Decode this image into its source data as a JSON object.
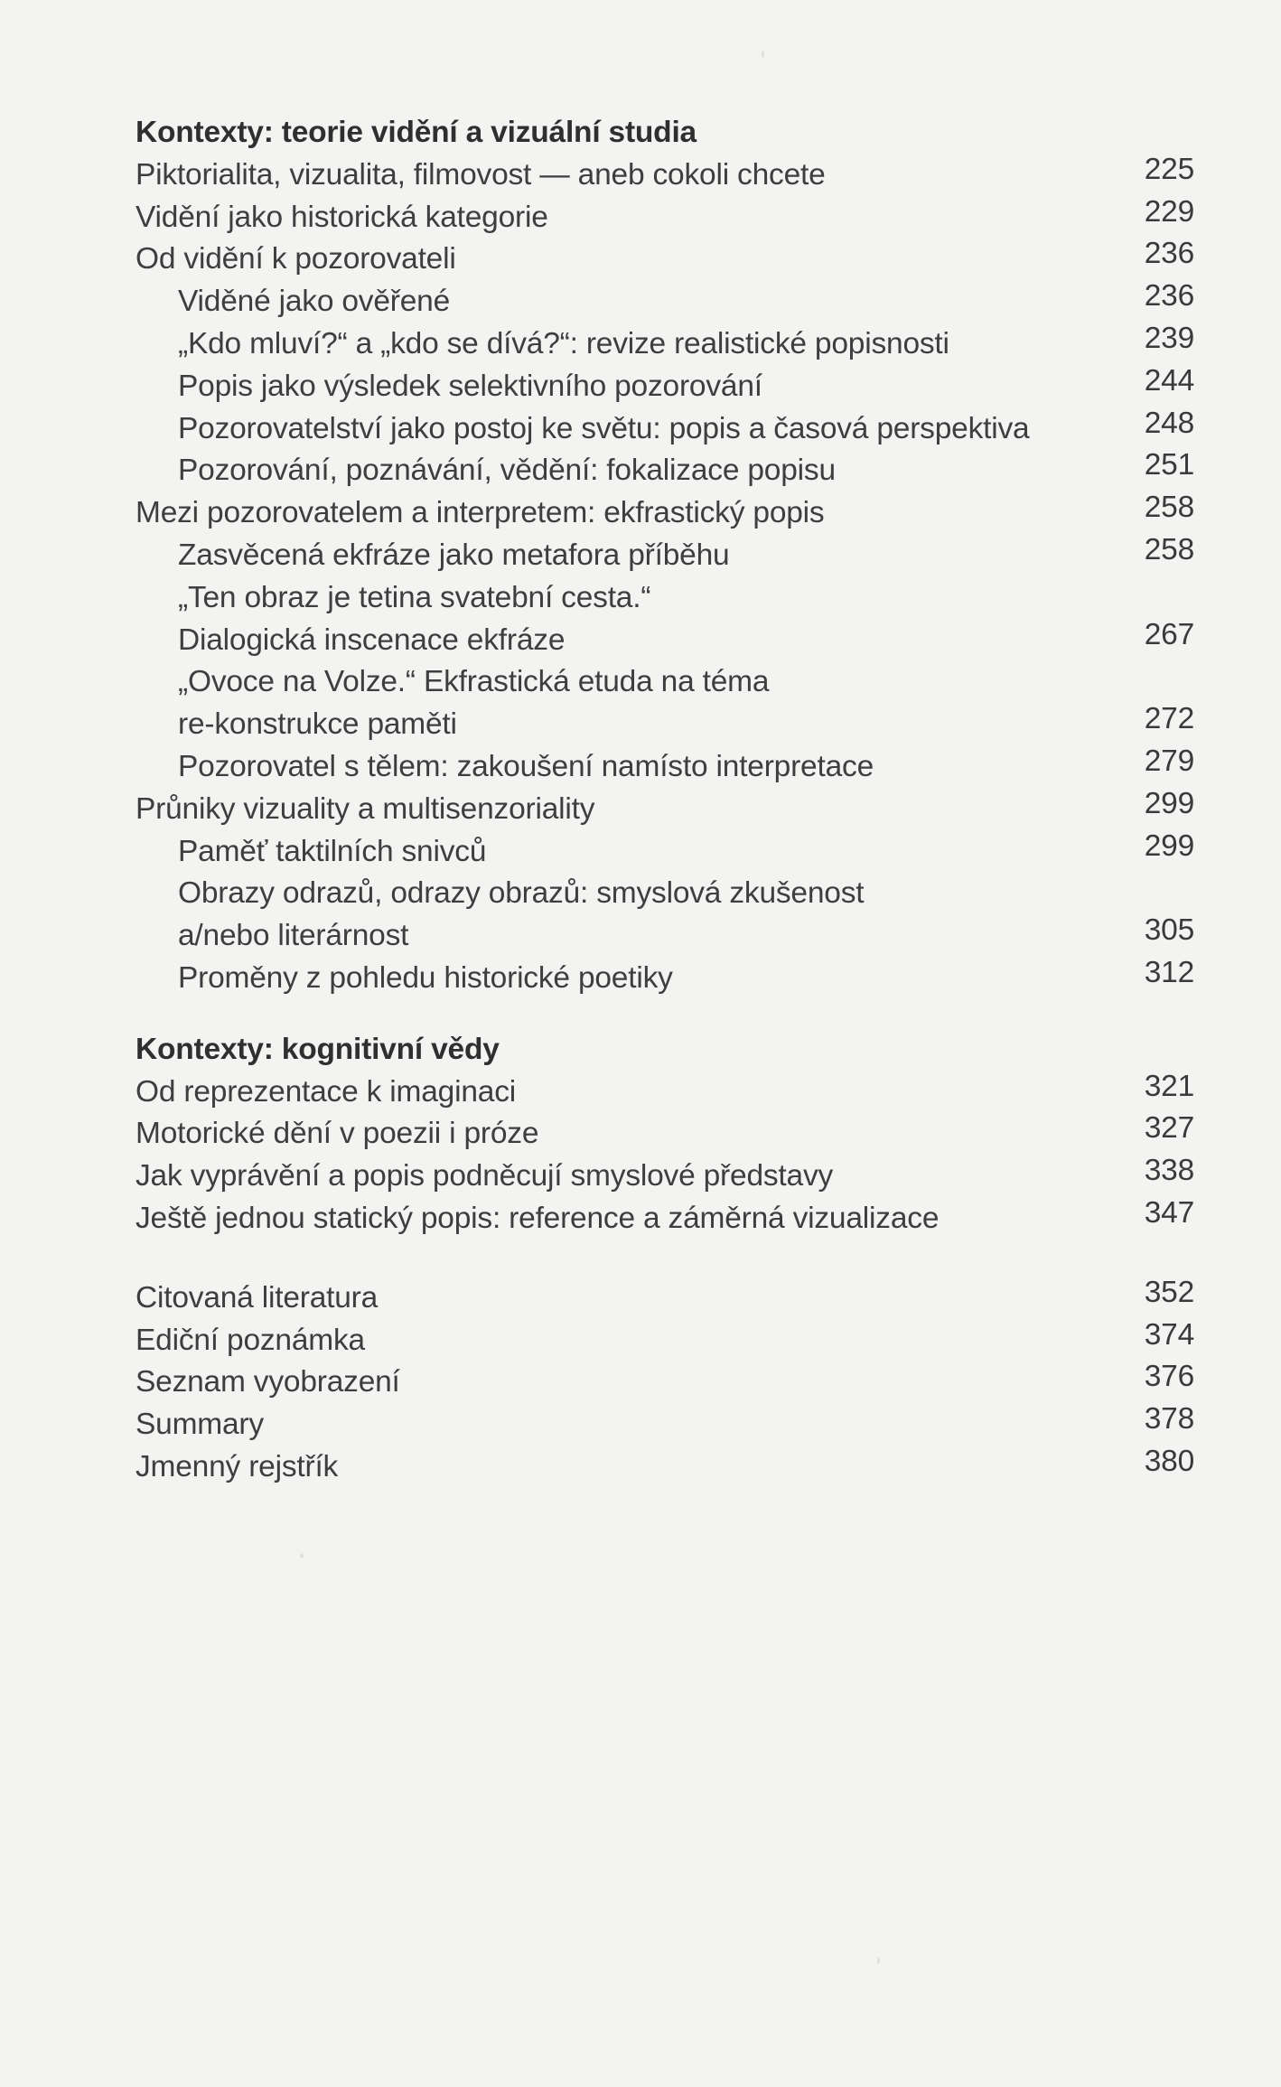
{
  "page": {
    "background": "#f3f3f2",
    "text_color": "#3e3e3e",
    "heading_color": "#2f2f2f"
  },
  "toc": {
    "sections": [
      {
        "heading": "Kontexty: teorie vidění a vizuální studia",
        "entries": [
          {
            "label": "Piktorialita, vizualita, filmovost — aneb cokoli chcete",
            "page": "225"
          },
          {
            "label": "Vidění jako historická kategorie",
            "page": "229"
          },
          {
            "label": "Od vidění k pozorovateli",
            "page": "236"
          },
          {
            "label": "Viděné jako ověřené",
            "page": "236"
          },
          {
            "label": "„Kdo mluví?“ a „kdo se dívá?“: revize realistické popisnosti",
            "page": "239"
          },
          {
            "label": "Popis jako výsledek selektivního pozorování",
            "page": "244"
          },
          {
            "label": "Pozorovatelství jako postoj ke světu: popis a časová perspektiva",
            "page": "248"
          },
          {
            "label": "Pozorování, poznávání, vědění: fokalizace popisu",
            "page": "251"
          },
          {
            "label": "Mezi pozorovatelem a interpretem: ekfrastický popis",
            "page": "258"
          },
          {
            "label": "Zasvěcená ekfráze jako metafora příběhu",
            "page": "258"
          },
          {
            "label": "„Ten obraz je tetina svatební cesta.“",
            "page": ""
          },
          {
            "label": "Dialogická inscenace ekfráze",
            "page": "267"
          },
          {
            "label": "„Ovoce na Volze.“ Ekfrastická etuda na téma",
            "page": ""
          },
          {
            "label": "re-konstrukce paměti",
            "page": "272"
          },
          {
            "label": "Pozorovatel s tělem: zakoušení namísto interpretace",
            "page": "279"
          },
          {
            "label": "Průniky vizuality a multisenzoriality",
            "page": "299"
          },
          {
            "label": "Paměť taktilních snivců",
            "page": "299"
          },
          {
            "label": "Obrazy odrazů, odrazy obrazů: smyslová zkušenost",
            "page": ""
          },
          {
            "label": "a/nebo literárnost",
            "page": "305"
          },
          {
            "label": "Proměny z pohledu historické poetiky",
            "page": "312"
          }
        ]
      },
      {
        "heading": "Kontexty: kognitivní vědy",
        "entries": [
          {
            "label": "Od reprezentace k imaginaci",
            "page": "321"
          },
          {
            "label": "Motorické dění v poezii i próze",
            "page": "327"
          },
          {
            "label": "Jak vyprávění a popis podněcují smyslové představy",
            "page": "338"
          },
          {
            "label": "Ještě jednou statický popis: reference a záměrná vizualizace",
            "page": "347"
          }
        ]
      },
      {
        "heading": "",
        "entries": [
          {
            "label": "Citovaná literatura",
            "page": "352"
          },
          {
            "label": "Ediční poznámka",
            "page": "374"
          },
          {
            "label": "Seznam vyobrazení",
            "page": "376"
          },
          {
            "label": "Summary",
            "page": "378"
          },
          {
            "label": "Jmenný rejstřík",
            "page": "380"
          }
        ]
      }
    ]
  }
}
